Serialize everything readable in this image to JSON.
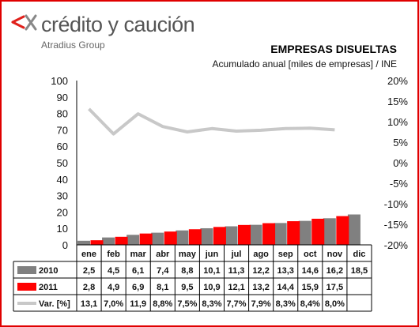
{
  "brand": {
    "name": "crédito y caución",
    "sub": "Atradius Group",
    "accent": "#e0201b"
  },
  "chart_data": {
    "type": "bar",
    "title": "EMPRESAS DISUELTAS",
    "subtitle": "Acumulado anual [miles de empresas] / INE",
    "categories": [
      "ene",
      "feb",
      "mar",
      "abr",
      "may",
      "jun",
      "jul",
      "ago",
      "sep",
      "oct",
      "nov",
      "dic"
    ],
    "series": [
      {
        "name": "2010",
        "type": "bar",
        "color": "#808080",
        "axis": "left",
        "values": [
          2.5,
          4.5,
          6.1,
          7.4,
          8.8,
          10.1,
          11.3,
          12.2,
          13.3,
          14.6,
          16.2,
          18.5
        ],
        "labels": [
          "2,5",
          "4,5",
          "6,1",
          "7,4",
          "8,8",
          "10,1",
          "11,3",
          "12,2",
          "13,3",
          "14,6",
          "16,2",
          "18,5"
        ]
      },
      {
        "name": "2011",
        "type": "bar",
        "color": "#ff0000",
        "axis": "left",
        "values": [
          2.8,
          4.9,
          6.9,
          8.1,
          9.5,
          10.9,
          12.1,
          13.2,
          14.4,
          15.9,
          17.5,
          null
        ],
        "labels": [
          "2,8",
          "4,9",
          "6,9",
          "8,1",
          "9,5",
          "10,9",
          "12,1",
          "13,2",
          "14,4",
          "15,9",
          "17,5",
          ""
        ]
      },
      {
        "name": "Var. [%]",
        "type": "line",
        "color": "#c8c8c8",
        "axis": "right",
        "values": [
          13.1,
          7.0,
          11.9,
          8.8,
          7.5,
          8.3,
          7.7,
          7.9,
          8.3,
          8.4,
          8.0,
          null
        ],
        "labels": [
          "13,1",
          "7,0%",
          "11,9",
          "8,8%",
          "7,5%",
          "8,3%",
          "7,7%",
          "7,9%",
          "8,3%",
          "8,4%",
          "8,0%",
          ""
        ]
      }
    ],
    "ylim": [
      0,
      100
    ],
    "yticks": [
      0,
      10,
      20,
      30,
      40,
      50,
      60,
      70,
      80,
      90,
      100
    ],
    "y2lim": [
      -20,
      20
    ],
    "y2ticks": [
      "20%",
      "15%",
      "10%",
      "5%",
      "0%",
      "-5%",
      "-10%",
      "-15%",
      "-20%"
    ],
    "grid": false,
    "legend": "data-table"
  }
}
